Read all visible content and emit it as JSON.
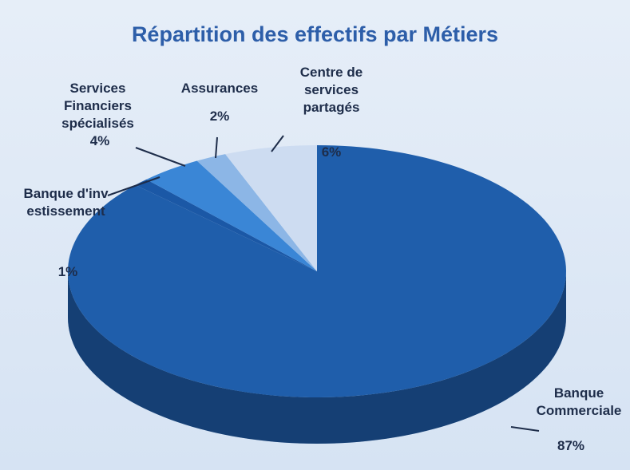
{
  "chart_data": {
    "type": "pie",
    "title": "Répartition des effectifs par Métiers",
    "categories": [
      "Banque Commerciale",
      "Banque d'investissement",
      "Services Financiers spécialisés",
      "Assurances",
      "Centre de services partagés"
    ],
    "values": [
      87,
      1,
      4,
      2,
      6
    ],
    "value_labels": [
      "87%",
      "1%",
      "4%",
      "2%",
      "6%"
    ],
    "colors": [
      "#1f5eab",
      "#1b58a6",
      "#3a86d6",
      "#8cb6e6",
      "#cddcf1"
    ]
  }
}
